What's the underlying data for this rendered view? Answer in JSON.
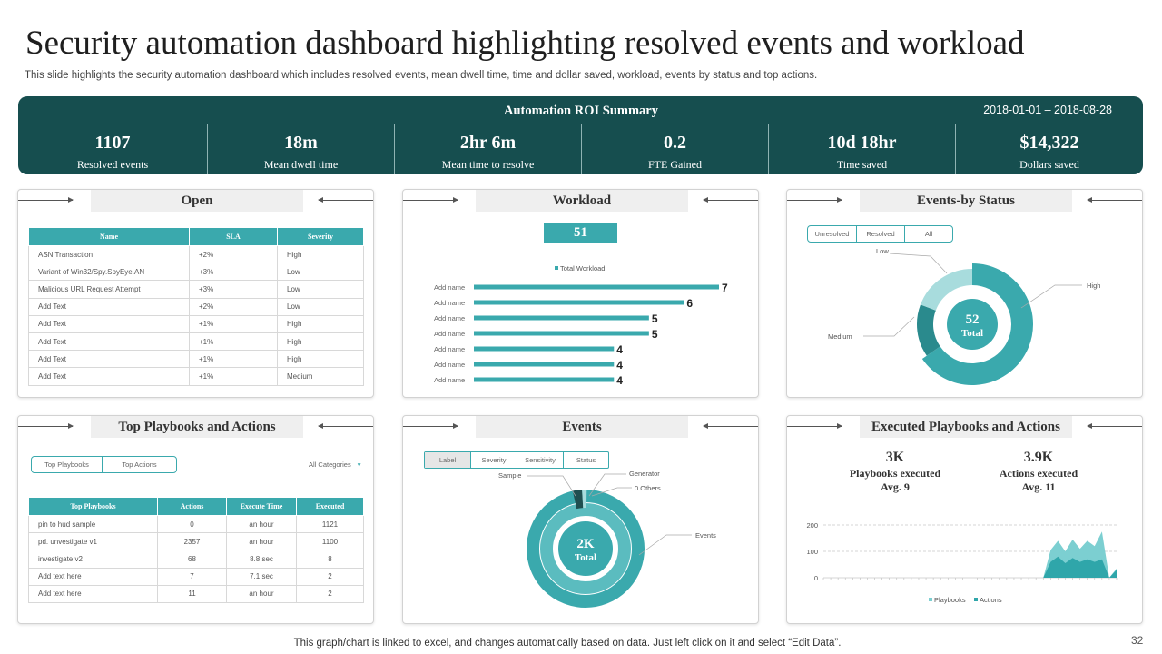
{
  "title": "Security automation dashboard highlighting resolved events and workload",
  "subtitle": "This slide highlights the security automation dashboard which includes resolved events, mean dwell time, time and dollar saved, workload, events by status and top actions.",
  "roi": {
    "title": "Automation  ROI Summary",
    "range": "2018-01-01 – 2018-08-28",
    "kpis": [
      {
        "value": "1107",
        "label": "Resolved events"
      },
      {
        "value": "18m",
        "label": "Mean dwell time"
      },
      {
        "value": "2hr 6m",
        "label": "Mean time to resolve"
      },
      {
        "value": "0.2",
        "label": "FTE Gained"
      },
      {
        "value": "10d 18hr",
        "label": "Time saved"
      },
      {
        "value": "$14,322",
        "label": "Dollars saved"
      }
    ]
  },
  "open": {
    "title": "Open",
    "headers": [
      "Name",
      "SLA",
      "Severity"
    ],
    "rows": [
      [
        "ASN Transaction",
        "+2%",
        "High"
      ],
      [
        "Variant  of Win32/Spy.SpyEye.AN",
        "+3%",
        "Low"
      ],
      [
        "Malicious URL Request Attempt",
        "+3%",
        "Low"
      ],
      [
        "Add Text",
        "+2%",
        "Low"
      ],
      [
        "Add Text",
        "+1%",
        "High"
      ],
      [
        "Add Text",
        "+1%",
        "High"
      ],
      [
        "Add Text",
        "+1%",
        "High"
      ],
      [
        "Add Text",
        "+1%",
        "Medium"
      ]
    ]
  },
  "workload": {
    "title": "Workload",
    "total": "51",
    "legend": "Total Workload"
  },
  "status": {
    "title": "Events-by Status",
    "tabs": [
      "Unresolved",
      "Resolved",
      "All"
    ],
    "center_value": "52",
    "center_label": "Total",
    "labels": {
      "low": "Low",
      "high": "High",
      "medium": "Medium"
    }
  },
  "playbooks": {
    "title": "Top Playbooks and Actions",
    "tabs": [
      "Top Playbooks",
      "Top Actions"
    ],
    "filter": "All Categories",
    "headers": [
      "Top Playbooks",
      "Actions",
      "Execute Time",
      "Executed"
    ],
    "rows": [
      [
        "pin  to  hud  sample",
        "0",
        "an hour",
        "1121"
      ],
      [
        "pd. unvestigate v1",
        "2357",
        "an hour",
        "1100"
      ],
      [
        "investigate v2",
        "68",
        "8.8 sec",
        "8"
      ],
      [
        "Add text here",
        "7",
        "7.1 sec",
        "2"
      ],
      [
        "Add text here",
        "11",
        "an hour",
        "2"
      ]
    ]
  },
  "events": {
    "title": "Events",
    "tabs": [
      "Label",
      "Severity",
      "Sensitivity",
      "Status"
    ],
    "center_value": "2K",
    "center_label": "Total",
    "labels": {
      "sample": "Sample",
      "generator": "Generator",
      "others": "0 Others",
      "events": "Events"
    }
  },
  "executed": {
    "title": "Executed Playbooks and Actions",
    "stats": [
      {
        "value": "3K",
        "label": "Playbooks executed",
        "avg": "Avg. 9"
      },
      {
        "value": "3.9K",
        "label": "Actions executed",
        "avg": "Avg. 11"
      }
    ],
    "y_ticks": [
      "200",
      "100",
      "0"
    ],
    "legend": [
      "Playbooks",
      "Actions"
    ]
  },
  "footer": "This graph/chart is linked to excel,  and changes automatically based on data. Just left click on it and select “Edit Data”.",
  "page_number": "32",
  "colors": {
    "dark": "#164e4f",
    "teal": "#3aa9ad",
    "mid": "#5bbcbf",
    "light": "#a8dcdd",
    "deep": "#2a8a8d"
  },
  "chart_data": [
    {
      "type": "bar",
      "title": "Workload",
      "orientation": "horizontal",
      "categories": [
        "Add name",
        "Add name",
        "Add name",
        "Add name",
        "Add name",
        "Add name",
        "Add name"
      ],
      "values": [
        7,
        6,
        5,
        5,
        4,
        4,
        4
      ],
      "legend": [
        "Total Workload"
      ],
      "xlim": [
        0,
        7
      ]
    },
    {
      "type": "pie",
      "title": "Events-by Status",
      "donut": true,
      "categories": [
        "High",
        "Medium",
        "Low"
      ],
      "values": [
        34,
        8,
        10
      ],
      "center_text": "52 Total"
    },
    {
      "type": "pie",
      "title": "Events",
      "donut": true,
      "categories": [
        "Events",
        "Sample",
        "Generator",
        "0 Others"
      ],
      "values": [
        1900,
        40,
        30,
        10
      ],
      "center_text": "2K Total"
    },
    {
      "type": "area",
      "title": "Executed Playbooks and Actions",
      "ylim": [
        0,
        200
      ],
      "y_ticks": [
        0,
        100,
        200
      ],
      "x": [
        0,
        1,
        2,
        3,
        4,
        5,
        6,
        7,
        8,
        9,
        10,
        11,
        12,
        13,
        14,
        15,
        16,
        17,
        18,
        19,
        20,
        21,
        22,
        23,
        24,
        25,
        26,
        27,
        28,
        29,
        30,
        31,
        32,
        33,
        34,
        35,
        36,
        37,
        38,
        39,
        40
      ],
      "series": [
        {
          "name": "Playbooks",
          "values": [
            0,
            0,
            0,
            0,
            0,
            0,
            0,
            0,
            0,
            0,
            0,
            0,
            0,
            0,
            0,
            0,
            0,
            0,
            0,
            0,
            0,
            0,
            0,
            0,
            0,
            0,
            0,
            0,
            0,
            0,
            0,
            105,
            140,
            100,
            145,
            110,
            140,
            120,
            175,
            0,
            35
          ]
        },
        {
          "name": "Actions",
          "values": [
            0,
            0,
            0,
            0,
            0,
            0,
            0,
            0,
            0,
            0,
            0,
            0,
            0,
            0,
            0,
            0,
            0,
            0,
            0,
            0,
            0,
            0,
            0,
            0,
            0,
            0,
            0,
            0,
            0,
            0,
            0,
            60,
            80,
            55,
            75,
            60,
            70,
            60,
            70,
            0,
            30
          ]
        }
      ]
    }
  ]
}
